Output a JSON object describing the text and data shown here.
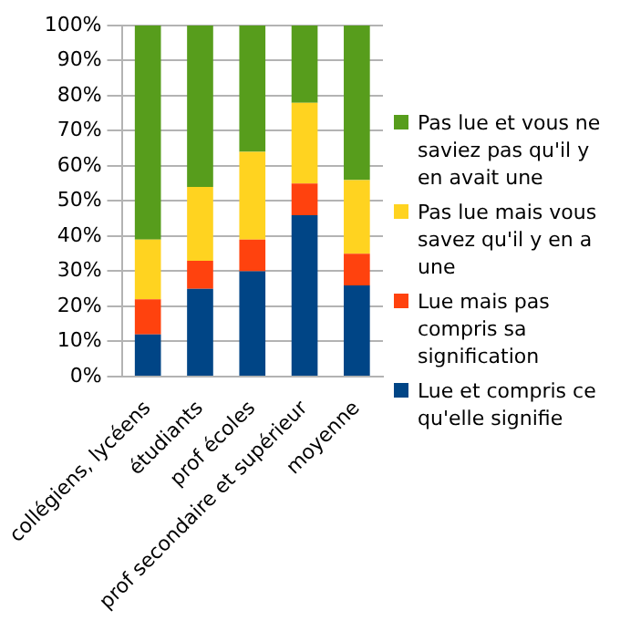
{
  "chart_data": {
    "type": "bar",
    "stacked": true,
    "categories": [
      "collégiens, lycéens",
      "étudiants",
      "prof écoles",
      "prof secondaire et supérieur",
      "moyenne"
    ],
    "series": [
      {
        "name": "Lue et compris ce qu'elle signifie",
        "color": "#004586",
        "values": [
          12,
          25,
          30,
          46,
          26
        ]
      },
      {
        "name": "Lue mais pas compris sa signification",
        "color": "#ff420e",
        "values": [
          10,
          8,
          9,
          9,
          9
        ]
      },
      {
        "name": "Pas lue mais vous savez qu'il y en a une",
        "color": "#ffd320",
        "values": [
          17,
          21,
          25,
          23,
          21
        ]
      },
      {
        "name": "Pas lue et vous ne saviez pas qu'il y en avait une",
        "color": "#579d1c",
        "values": [
          61,
          46,
          36,
          22,
          44
        ]
      }
    ],
    "ylim": [
      0,
      100
    ],
    "yticks": [
      {
        "value": 0,
        "label": "0%"
      },
      {
        "value": 10,
        "label": "10%"
      },
      {
        "value": 20,
        "label": "20%"
      },
      {
        "value": 30,
        "label": "30%"
      },
      {
        "value": 40,
        "label": "40%"
      },
      {
        "value": 50,
        "label": "50%"
      },
      {
        "value": 60,
        "label": "60%"
      },
      {
        "value": 70,
        "label": "70%"
      },
      {
        "value": 80,
        "label": "80%"
      },
      {
        "value": 90,
        "label": "90%"
      },
      {
        "value": 100,
        "label": "100%"
      }
    ],
    "grid": "y",
    "legend": "right"
  }
}
